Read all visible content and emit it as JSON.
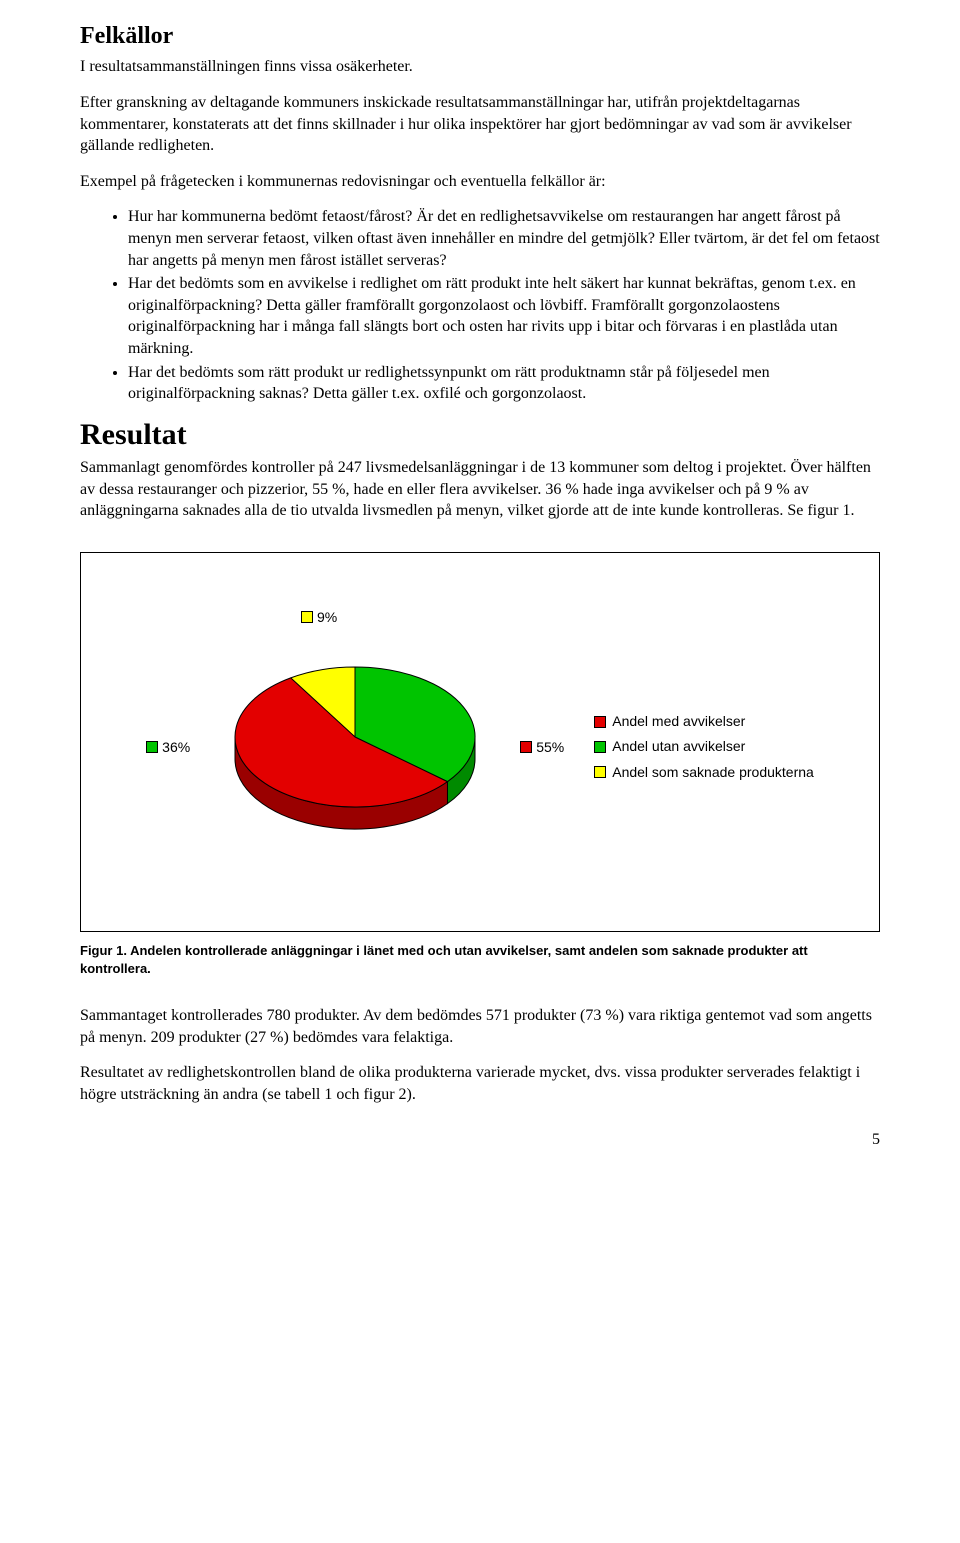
{
  "section1": {
    "heading": "Felkällor",
    "p1": "I resultatsammanställningen finns vissa osäkerheter.",
    "p2": "Efter granskning av deltagande kommuners inskickade resultatsammanställningar har, utifrån projektdeltagarnas kommentarer, konstaterats att det finns skillnader i hur olika inspektörer har gjort bedömningar av vad som är avvikelser gällande redligheten.",
    "p3": "Exempel på frågetecken i kommunernas redovisningar och eventuella felkällor är:",
    "bullets": [
      "Hur har kommunerna bedömt fetaost/fårost? Är det en redlighetsavvikelse om restaurangen har angett fårost på menyn men serverar fetaost, vilken oftast även innehåller en mindre del getmjölk? Eller tvärtom, är det fel om fetaost har angetts på menyn men fårost istället serveras?",
      "Har det bedömts som en avvikelse i redlighet om rätt produkt inte helt säkert har kunnat bekräftas, genom t.ex. en originalförpackning? Detta gäller framförallt gorgonzolaost och lövbiff. Framförallt gorgonzolaostens originalförpackning har i många fall slängts bort och osten har rivits upp i bitar och förvaras i en plastlåda utan märkning.",
      "Har det bedömts som rätt produkt ur redlighetssynpunkt om rätt produktnamn står på följesedel men originalförpackning saknas? Detta gäller t.ex. oxfilé och gorgonzolaost."
    ]
  },
  "section2": {
    "heading": "Resultat",
    "p1": "Sammanlagt genomfördes kontroller på 247 livsmedelsanläggningar i de 13 kommuner som deltog i projektet. Över hälften av dessa restauranger och pizzerior, 55 %, hade en eller flera avvikelser. 36 % hade inga avvikelser och på 9 % av anläggningarna saknades alla de tio utvalda livsmedlen på menyn, vilket gjorde att de inte kunde kontrolleras. Se figur 1."
  },
  "chart": {
    "type": "pie",
    "slices": [
      {
        "label": "Andel med avvikelser",
        "value": 55,
        "display": "55%",
        "color": "#e30000",
        "side_color": "#9a0000"
      },
      {
        "label": "Andel utan avvikelser",
        "value": 36,
        "display": "36%",
        "color": "#00c400",
        "side_color": "#008a00"
      },
      {
        "label": "Andel som saknade produkterna",
        "value": 9,
        "display": "9%",
        "color": "#ffff00",
        "side_color": "#bdbd00"
      }
    ],
    "label_fontsize": 14,
    "label_font": "Arial",
    "border_color": "#000000",
    "background_color": "#ffffff"
  },
  "caption": "Figur 1. Andelen kontrollerade anläggningar i länet med och utan avvikelser, samt andelen som saknade produkter att kontrollera.",
  "p_after1": "Sammantaget kontrollerades 780 produkter. Av dem bedömdes 571 produkter (73 %) vara riktiga gentemot vad som angetts på menyn. 209 produkter (27 %) bedömdes vara felaktiga.",
  "p_after2": "Resultatet av redlighetskontrollen bland de olika produkterna varierade mycket, dvs. vissa produkter serverades felaktigt i högre utsträckning än andra (se tabell 1 och figur 2).",
  "page_number": "5"
}
